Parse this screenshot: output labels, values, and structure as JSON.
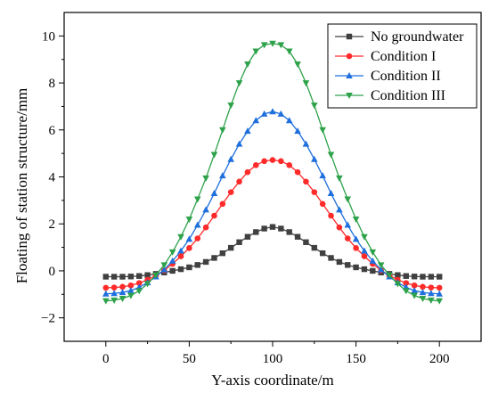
{
  "chart_data": {
    "type": "line",
    "xlabel": "Y-axis coordinate/m",
    "ylabel": "Floating of station structure/mm",
    "xlim": [
      -25,
      225
    ],
    "ylim": [
      -3,
      11
    ],
    "xticks": [
      0,
      50,
      100,
      150,
      200
    ],
    "yticks": [
      -2,
      0,
      2,
      4,
      6,
      8,
      10
    ],
    "legend_position": "top-right",
    "x": [
      0,
      5,
      10,
      15,
      20,
      25,
      30,
      35,
      40,
      45,
      50,
      55,
      60,
      65,
      70,
      75,
      80,
      85,
      90,
      95,
      100,
      105,
      110,
      115,
      120,
      125,
      130,
      135,
      140,
      145,
      150,
      155,
      160,
      165,
      170,
      175,
      180,
      185,
      190,
      195,
      200
    ],
    "series": [
      {
        "name": "No groundwater",
        "color": "#404040",
        "marker": "square",
        "values": [
          -0.25,
          -0.25,
          -0.25,
          -0.24,
          -0.22,
          -0.18,
          -0.13,
          -0.07,
          0.0,
          0.07,
          0.15,
          0.25,
          0.38,
          0.55,
          0.75,
          0.98,
          1.22,
          1.45,
          1.65,
          1.8,
          1.87,
          1.8,
          1.65,
          1.45,
          1.22,
          0.98,
          0.75,
          0.55,
          0.38,
          0.25,
          0.15,
          0.07,
          0.0,
          -0.07,
          -0.13,
          -0.18,
          -0.22,
          -0.24,
          -0.25,
          -0.25,
          -0.25
        ]
      },
      {
        "name": "Condition I",
        "color": "#ff2a2a",
        "marker": "circle",
        "values": [
          -0.72,
          -0.71,
          -0.68,
          -0.62,
          -0.52,
          -0.38,
          -0.2,
          0.02,
          0.3,
          0.62,
          0.97,
          1.38,
          1.85,
          2.35,
          2.85,
          3.35,
          3.8,
          4.2,
          4.5,
          4.67,
          4.72,
          4.67,
          4.5,
          4.2,
          3.8,
          3.35,
          2.85,
          2.35,
          1.85,
          1.38,
          0.97,
          0.62,
          0.3,
          0.02,
          -0.2,
          -0.38,
          -0.52,
          -0.62,
          -0.68,
          -0.71,
          -0.72
        ]
      },
      {
        "name": "Condition II",
        "color": "#1f6fdd",
        "marker": "triangle-up",
        "values": [
          -0.98,
          -0.96,
          -0.92,
          -0.84,
          -0.7,
          -0.5,
          -0.25,
          0.05,
          0.42,
          0.85,
          1.35,
          1.95,
          2.6,
          3.3,
          4.05,
          4.75,
          5.4,
          5.95,
          6.4,
          6.68,
          6.78,
          6.68,
          6.4,
          5.95,
          5.4,
          4.75,
          4.05,
          3.3,
          2.6,
          1.95,
          1.35,
          0.85,
          0.42,
          0.05,
          -0.25,
          -0.5,
          -0.7,
          -0.84,
          -0.92,
          -0.96,
          -0.98
        ]
      },
      {
        "name": "Condition III",
        "color": "#2ea24a",
        "marker": "triangle-down",
        "values": [
          -1.28,
          -1.25,
          -1.18,
          -1.05,
          -0.85,
          -0.55,
          -0.18,
          0.25,
          0.8,
          1.45,
          2.2,
          3.05,
          3.95,
          4.95,
          6.0,
          7.05,
          8.0,
          8.8,
          9.35,
          9.62,
          9.68,
          9.62,
          9.35,
          8.8,
          8.0,
          7.05,
          6.0,
          4.95,
          3.95,
          3.05,
          2.2,
          1.45,
          0.8,
          0.25,
          -0.18,
          -0.55,
          -0.85,
          -1.05,
          -1.18,
          -1.25,
          -1.28
        ]
      }
    ]
  }
}
